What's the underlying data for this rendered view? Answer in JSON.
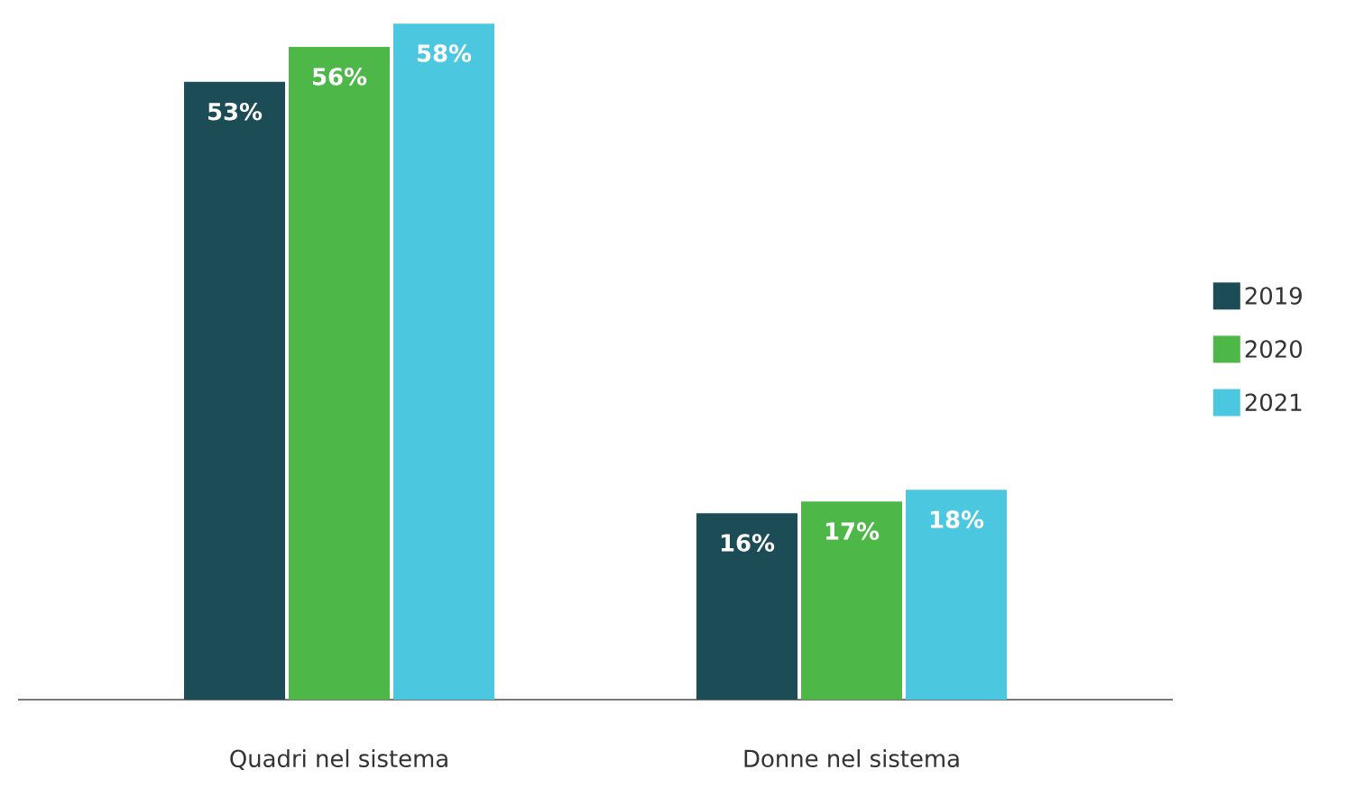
{
  "chart_data": {
    "type": "bar",
    "categories": [
      "Quadri nel sistema",
      "Donne nel sistema"
    ],
    "series": [
      {
        "name": "2019",
        "color": "#1c4c55",
        "values": [
          53,
          16
        ],
        "value_labels": [
          "53%",
          "16%"
        ]
      },
      {
        "name": "2020",
        "color": "#4db848",
        "values": [
          56,
          17
        ],
        "value_labels": [
          "56%",
          "17%"
        ]
      },
      {
        "name": "2021",
        "color": "#4cc7e0",
        "values": [
          58,
          18
        ],
        "value_labels": [
          "58%",
          "18%"
        ]
      }
    ],
    "tick_labels": "x",
    "legend": "right"
  }
}
